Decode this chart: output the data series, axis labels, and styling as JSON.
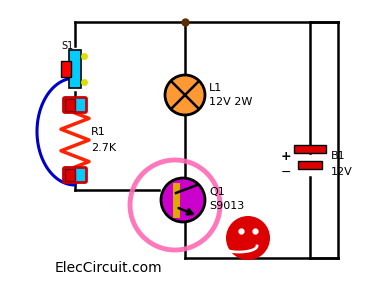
{
  "bg_color": "#ffffff",
  "wire_color": "#000000",
  "title_text": "ElecCircuit.com",
  "title_fontsize": 10,
  "title_color": "#000000",
  "s1_label": "S1",
  "r1_label": "R1",
  "r1_value": "2.7K",
  "l1_label": "L1",
  "l1_value": "12V 2W",
  "q1_label": "Q1",
  "q1_value": "S9013",
  "b1_label": "B1",
  "b1_value": "12V",
  "switch_color": "#00ccff",
  "resistor_color": "#ff2200",
  "lamp_color": "#ff9933",
  "transistor_fill": "#cc00cc",
  "circle_highlight": "#ff69b4",
  "node_color": "#5c2e00",
  "blue_wire_color": "#0000cc",
  "sad_face_color": "#dd0000",
  "label_fontsize": 8,
  "small_fontsize": 7,
  "lw": 1.8
}
